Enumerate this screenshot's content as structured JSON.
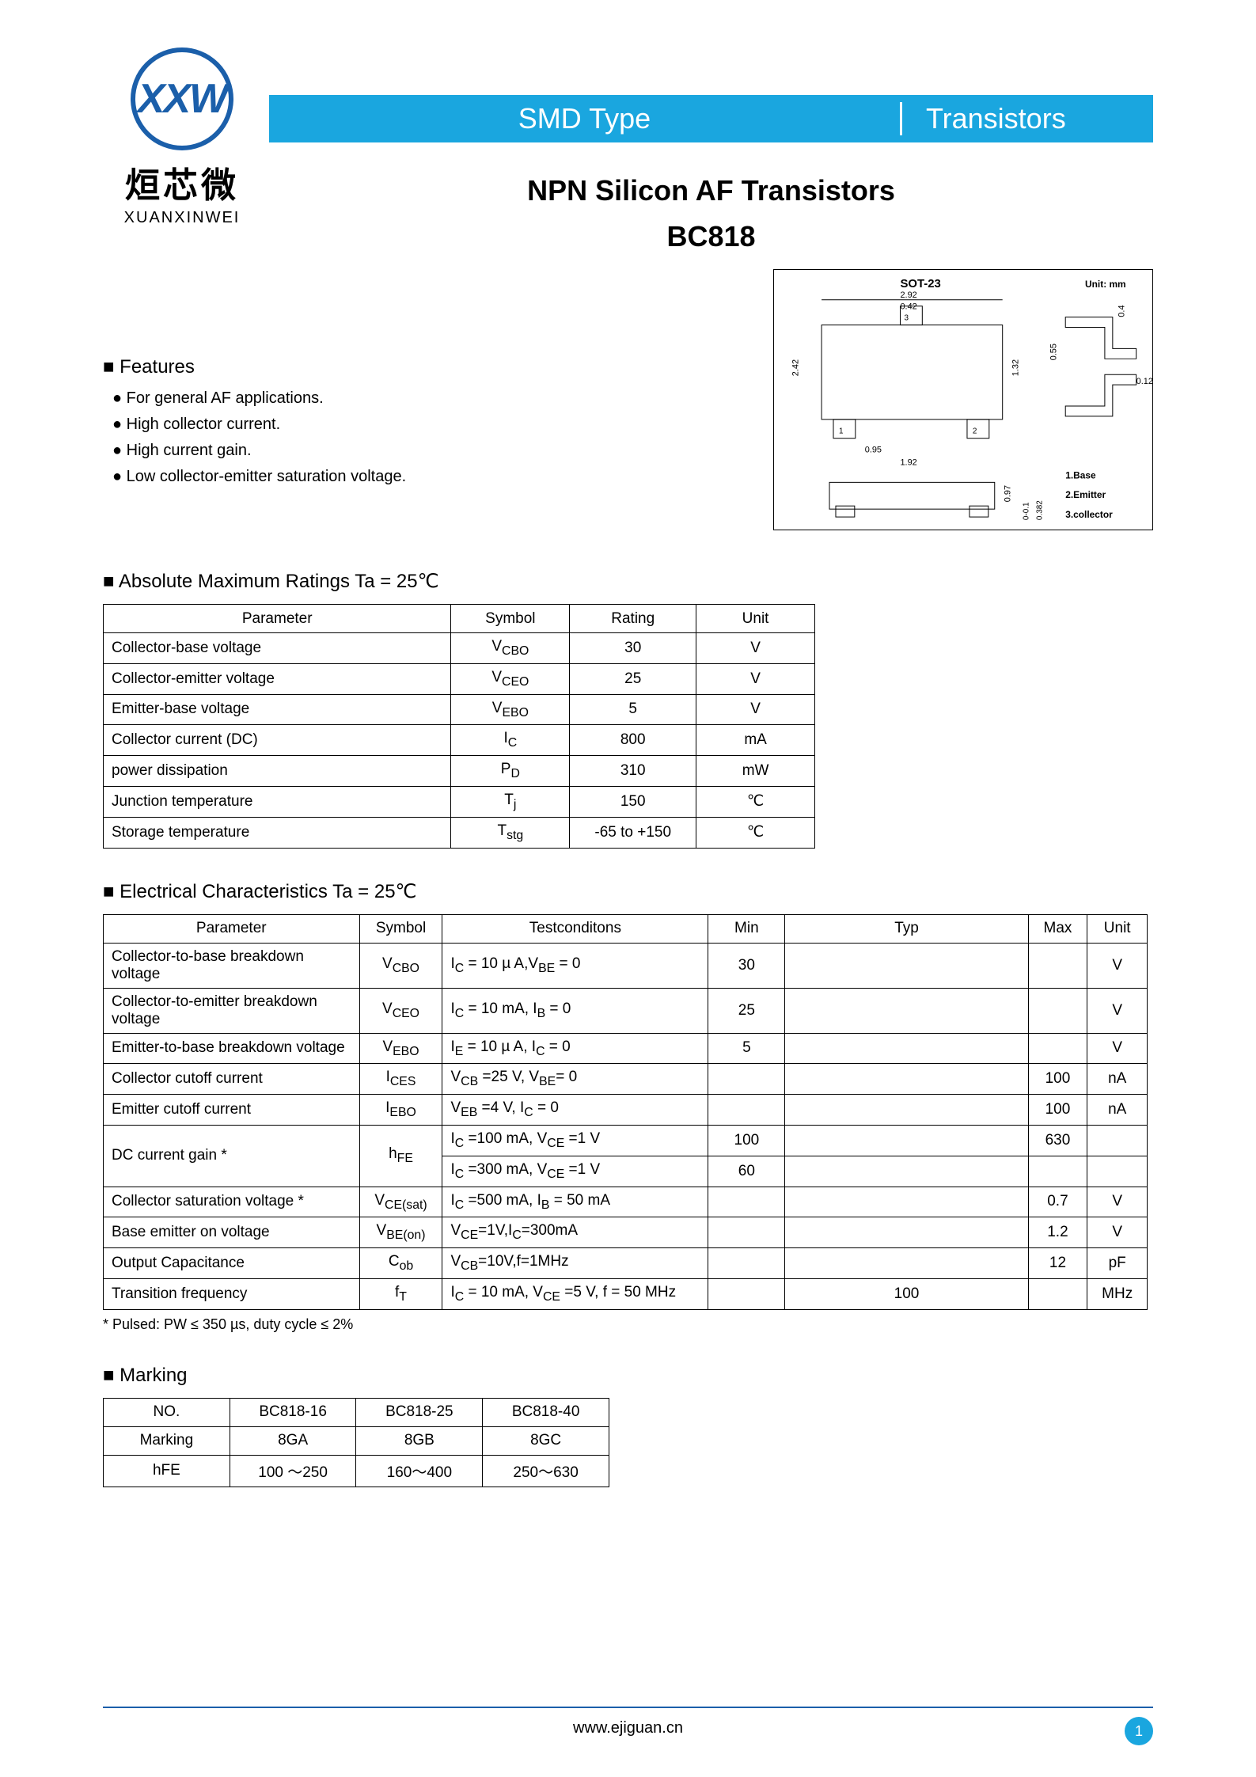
{
  "header": {
    "left": "SMD Type",
    "right": "Transistors"
  },
  "logo": {
    "mark": "XXW",
    "cn": "烜芯微",
    "en": "XUANXINWEI"
  },
  "title": {
    "main": "NPN Silicon AF Transistors",
    "part": "BC818"
  },
  "package": {
    "name": "SOT-23",
    "unit_label": "Unit: mm",
    "dims": {
      "w_top": "2.92",
      "w_inner": "0.42",
      "h_left": "2.42",
      "h_right": "1.32",
      "pitch": "0.95",
      "span": "1.92",
      "lead_h": "0.55",
      "lead_t": "0.12",
      "side_h": "0.97",
      "side_a": "0-0.1",
      "side_b": "0.382",
      "top_off": "0.4"
    },
    "pins": [
      "1.Base",
      "2.Emitter",
      "3.collector"
    ]
  },
  "features": {
    "title": "Features",
    "items": [
      "For general AF applications.",
      "High collector current.",
      "High current gain.",
      "Low collector-emitter saturation voltage."
    ]
  },
  "ratings": {
    "title": "Absolute Maximum Ratings Ta = 25℃",
    "columns": [
      "Parameter",
      "Symbol",
      "Rating",
      "Unit"
    ],
    "rows": [
      [
        "Collector-base voltage",
        "V<sub>CBO</sub>",
        "30",
        "V"
      ],
      [
        "Collector-emitter voltage",
        "V<sub>CEO</sub>",
        "25",
        "V"
      ],
      [
        "Emitter-base voltage",
        "V<sub>EBO</sub>",
        "5",
        "V"
      ],
      [
        "Collector current (DC)",
        "I<sub>C</sub>",
        "800",
        "mA"
      ],
      [
        "power dissipation",
        "P<sub>D</sub>",
        "310",
        "mW"
      ],
      [
        "Junction temperature",
        "T<sub>j</sub>",
        "150",
        "℃"
      ],
      [
        "Storage temperature",
        "T<sub>stg</sub>",
        "-65 to +150",
        "℃"
      ]
    ]
  },
  "electrical": {
    "title": "Electrical Characteristics Ta = 25℃",
    "columns": [
      "Parameter",
      "Symbol",
      "Testconditons",
      "Min",
      "Typ",
      "Max",
      "Unit"
    ],
    "rows": [
      {
        "p": "Collector-to-base breakdown voltage",
        "s": "V<sub>CBO</sub>",
        "t": "I<sub>C</sub> = 10  µ A,V<sub>BE</sub> = 0",
        "min": "30",
        "typ": "",
        "max": "",
        "u": "V"
      },
      {
        "p": "Collector-to-emitter breakdown voltage",
        "s": "V<sub>CEO</sub>",
        "t": "I<sub>C</sub> = 10 mA, I<sub>B</sub> = 0",
        "min": "25",
        "typ": "",
        "max": "",
        "u": "V"
      },
      {
        "p": "Emitter-to-base breakdown voltage",
        "s": "V<sub>EBO</sub>",
        "t": "I<sub>E</sub> = 10  µ A, I<sub>C</sub> = 0",
        "min": "5",
        "typ": "",
        "max": "",
        "u": "V"
      },
      {
        "p": "Collector cutoff current",
        "s": "I<sub>CES</sub>",
        "t": "V<sub>CB</sub> =25 V, V<sub>BE</sub>= 0",
        "min": "",
        "typ": "",
        "max": "100",
        "u": "nA"
      },
      {
        "p": "Emitter cutoff current",
        "s": "I<sub>EBO</sub>",
        "t": "V<sub>EB</sub> =4 V, I<sub>C</sub> = 0",
        "min": "",
        "typ": "",
        "max": "100",
        "u": "nA"
      },
      {
        "p": "DC current gain *",
        "s": "h<sub>FE</sub>",
        "t": "I<sub>C</sub> =100 mA, V<sub>CE</sub> =1 V",
        "min": "100",
        "typ": "",
        "max": "630",
        "u": "",
        "rowspan": 2
      },
      {
        "p": "",
        "s": "",
        "t": "I<sub>C</sub> =300 mA, V<sub>CE</sub> =1 V",
        "min": "60",
        "typ": "",
        "max": "",
        "u": "",
        "cont": true
      },
      {
        "p": "Collector saturation voltage  *",
        "s": "V<sub>CE(sat)</sub>",
        "t": "I<sub>C</sub> =500 mA, I<sub>B</sub> = 50 mA",
        "min": "",
        "typ": "",
        "max": "0.7",
        "u": "V"
      },
      {
        "p": "Base emitter on voltage",
        "s": "V<sub>BE(on)</sub>",
        "t": "V<sub>CE</sub>=1V,I<sub>C</sub>=300mA",
        "min": "",
        "typ": "",
        "max": "1.2",
        "u": "V"
      },
      {
        "p": "Output Capacitance",
        "s": "C<sub>ob</sub>",
        "t": "V<sub>CB</sub>=10V,f=1MHz",
        "min": "",
        "typ": "",
        "max": "12",
        "u": "pF"
      },
      {
        "p": "Transition frequency",
        "s": "f<sub>T</sub>",
        "t": "I<sub>C</sub> = 10 mA, V<sub>CE</sub> =5 V, f = 50 MHz",
        "min": "",
        "typ": "100",
        "max": "",
        "u": "MHz"
      }
    ],
    "footnote": "* Pulsed: PW ≤ 350 µs, duty cycle ≤ 2%"
  },
  "marking": {
    "title": "Marking",
    "columns": [
      "NO.",
      "BC818-16",
      "BC818-25",
      "BC818-40"
    ],
    "rows": [
      [
        "Marking",
        "8GA",
        "8GB",
        "8GC"
      ],
      [
        "hFE",
        "100 ～250",
        "160～400",
        "250～630"
      ]
    ]
  },
  "footer": {
    "url": "www.ejiguan.cn",
    "page": "1"
  },
  "style": {
    "accent": "#1aa6df",
    "logo_blue": "#1b5faa",
    "green": "#6ab023",
    "text": "#000000",
    "bg": "#ffffff"
  }
}
